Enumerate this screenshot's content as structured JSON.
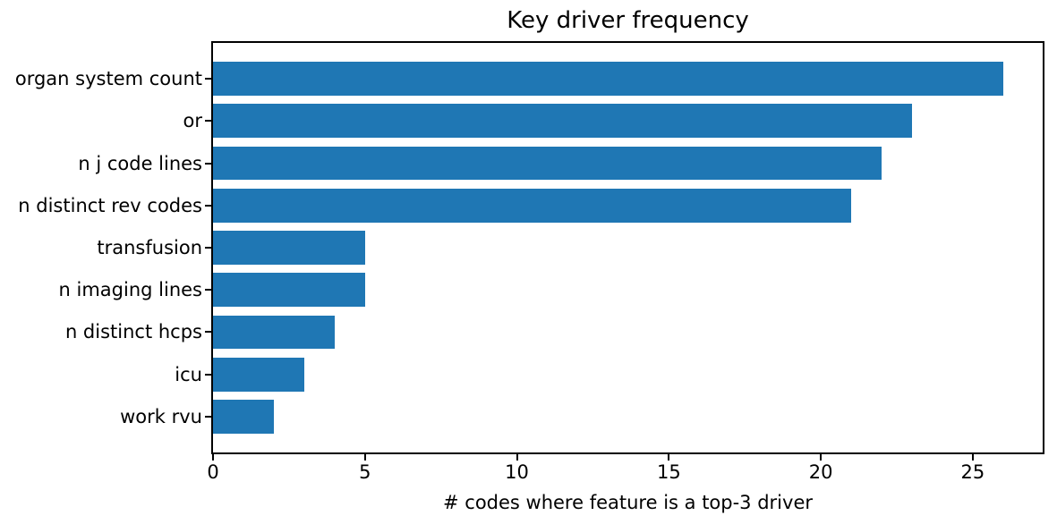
{
  "chart_data": {
    "type": "bar",
    "orientation": "horizontal",
    "title": "Key driver frequency",
    "xlabel": "# codes where feature is a top-3 driver",
    "ylabel": "",
    "categories": [
      "organ system count",
      "or",
      "n j code lines",
      "n distinct rev codes",
      "transfusion",
      "n imaging lines",
      "n distinct hcps",
      "icu",
      "work rvu"
    ],
    "values": [
      26,
      23,
      22,
      21,
      5,
      5,
      4,
      3,
      2
    ],
    "xticks": [
      0,
      5,
      10,
      15,
      20,
      25
    ],
    "xlim": [
      0,
      27.3
    ],
    "bar_color": "#1f77b4",
    "axis_color": "#000000",
    "grid": false,
    "legend": null
  }
}
